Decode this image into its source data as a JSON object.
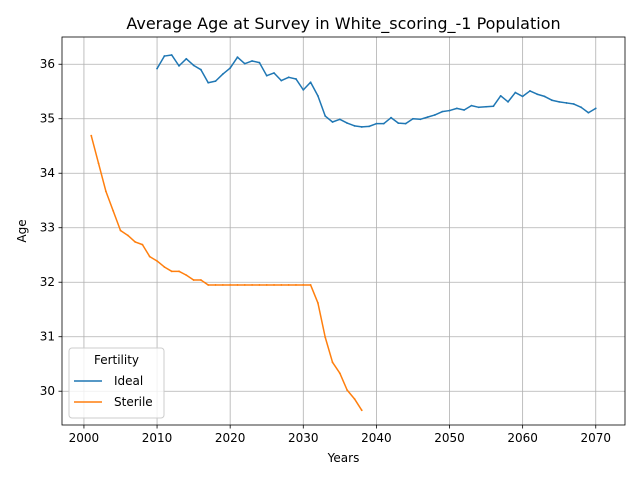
{
  "chart_data": {
    "type": "line",
    "title": "Average Age at Survey in White_scoring_-1 Population",
    "xlabel": "Years",
    "ylabel": "Age",
    "xlim": [
      1997,
      2074
    ],
    "ylim": [
      29.38,
      36.5
    ],
    "xticks": [
      2000,
      2010,
      2020,
      2030,
      2040,
      2050,
      2060,
      2070
    ],
    "yticks": [
      30,
      31,
      32,
      33,
      34,
      35,
      36
    ],
    "grid": true,
    "legend": {
      "title": "Fertility",
      "placement": "lower-left",
      "entries": [
        "Ideal",
        "Sterile"
      ]
    },
    "colors": {
      "Ideal": "#1f77b4",
      "Sterile": "#ff7f0e"
    },
    "series": [
      {
        "name": "Ideal",
        "x": [
          2010,
          2011,
          2012,
          2013,
          2014,
          2015,
          2016,
          2017,
          2018,
          2019,
          2020,
          2021,
          2022,
          2023,
          2024,
          2025,
          2026,
          2027,
          2028,
          2029,
          2030,
          2031,
          2032,
          2033,
          2034,
          2035,
          2036,
          2037,
          2038,
          2039,
          2040,
          2041,
          2042,
          2043,
          2044,
          2045,
          2046,
          2047,
          2048,
          2049,
          2050,
          2051,
          2052,
          2053,
          2054,
          2055,
          2056,
          2057,
          2058,
          2059,
          2060,
          2061,
          2062,
          2063,
          2064,
          2065,
          2066,
          2067,
          2068,
          2069,
          2070
        ],
        "values": [
          35.92,
          36.15,
          36.17,
          35.97,
          36.1,
          35.98,
          35.9,
          35.66,
          35.69,
          35.82,
          35.93,
          36.13,
          36.01,
          36.06,
          36.03,
          35.79,
          35.84,
          35.7,
          35.76,
          35.73,
          35.53,
          35.67,
          35.42,
          35.05,
          34.94,
          34.99,
          34.92,
          34.87,
          34.85,
          34.86,
          34.91,
          34.91,
          35.02,
          34.92,
          34.91,
          35.0,
          34.99,
          35.03,
          35.07,
          35.13,
          35.15,
          35.19,
          35.16,
          35.24,
          35.21,
          35.22,
          35.23,
          35.42,
          35.31,
          35.48,
          35.41,
          35.51,
          35.45,
          35.41,
          35.34,
          35.31,
          35.29,
          35.27,
          35.21,
          35.11,
          35.19
        ]
      },
      {
        "name": "Sterile",
        "x": [
          2001,
          2002,
          2003,
          2004,
          2005,
          2006,
          2007,
          2008,
          2009,
          2010,
          2011,
          2012,
          2013,
          2014,
          2015,
          2016,
          2017,
          2018,
          2019,
          2020,
          2021,
          2022,
          2023,
          2024,
          2025,
          2026,
          2027,
          2028,
          2029,
          2030,
          2031,
          2032,
          2033,
          2034,
          2035,
          2036,
          2037,
          2038
        ],
        "values": [
          34.69,
          34.18,
          33.67,
          33.31,
          32.95,
          32.86,
          32.74,
          32.69,
          32.47,
          32.39,
          32.28,
          32.2,
          32.2,
          32.13,
          32.04,
          32.04,
          31.95,
          31.95,
          31.95,
          31.95,
          31.95,
          31.95,
          31.95,
          31.95,
          31.95,
          31.95,
          31.95,
          31.95,
          31.95,
          31.95,
          31.95,
          31.62,
          30.99,
          30.53,
          30.33,
          30.02,
          29.86,
          29.65
        ]
      }
    ]
  }
}
